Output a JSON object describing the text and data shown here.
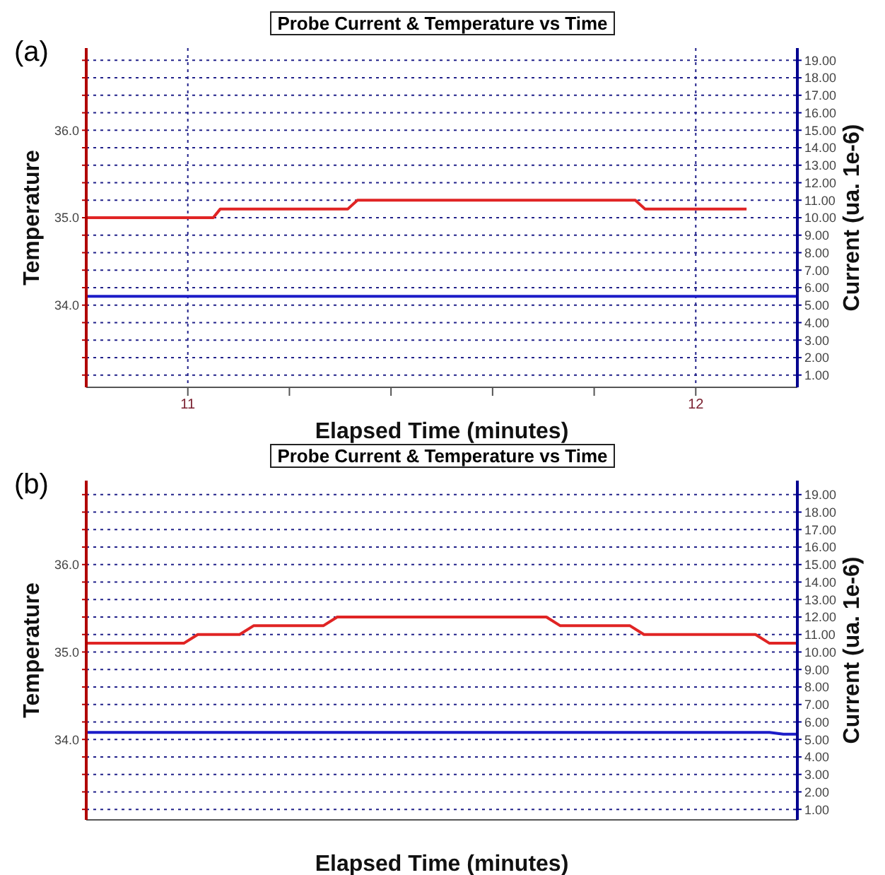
{
  "chart_data": [
    {
      "type": "line",
      "title": "Probe Current & Temperature vs Time",
      "xlabel": "Elapsed Time (minutes)",
      "ylabel": "Temperature",
      "y2label": "Current (ua. 1e-6)",
      "annotations": [
        "(a)"
      ],
      "xlim": [
        10.8,
        12.2
      ],
      "xticks": [
        {
          "value": 11,
          "label": "11"
        },
        {
          "value": 11.2,
          "label": null
        },
        {
          "value": 11.4,
          "label": null
        },
        {
          "value": 11.6,
          "label": null
        },
        {
          "value": 11.8,
          "label": null
        },
        {
          "value": 12,
          "label": "12"
        }
      ],
      "ylim": [
        33.06,
        36.94
      ],
      "yticks": [
        {
          "value": 33.2,
          "label": null
        },
        {
          "value": 33.4,
          "label": null
        },
        {
          "value": 33.6,
          "label": null
        },
        {
          "value": 33.8,
          "label": null
        },
        {
          "value": 34,
          "label": "34.0"
        },
        {
          "value": 34.2,
          "label": null
        },
        {
          "value": 34.4,
          "label": null
        },
        {
          "value": 34.6,
          "label": null
        },
        {
          "value": 34.8,
          "label": null
        },
        {
          "value": 35,
          "label": "35.0"
        },
        {
          "value": 35.2,
          "label": null
        },
        {
          "value": 35.4,
          "label": null
        },
        {
          "value": 35.6,
          "label": null
        },
        {
          "value": 35.8,
          "label": null
        },
        {
          "value": 36,
          "label": "36.0"
        },
        {
          "value": 36.2,
          "label": null
        },
        {
          "value": 36.4,
          "label": null
        },
        {
          "value": 36.6,
          "label": null
        },
        {
          "value": 36.8,
          "label": null
        }
      ],
      "y2lim": [
        0.3,
        19.7
      ],
      "y2ticks": [
        {
          "value": 1,
          "label": "1.00"
        },
        {
          "value": 2,
          "label": "2.00"
        },
        {
          "value": 3,
          "label": "3.00"
        },
        {
          "value": 4,
          "label": "4.00"
        },
        {
          "value": 5,
          "label": "5.00"
        },
        {
          "value": 6,
          "label": "6.00"
        },
        {
          "value": 7,
          "label": "7.00"
        },
        {
          "value": 8,
          "label": "8.00"
        },
        {
          "value": 9,
          "label": "9.00"
        },
        {
          "value": 10,
          "label": "10.00"
        },
        {
          "value": 11,
          "label": "11.00"
        },
        {
          "value": 12,
          "label": "12.00"
        },
        {
          "value": 13,
          "label": "13.00"
        },
        {
          "value": 14,
          "label": "14.00"
        },
        {
          "value": 15,
          "label": "15.00"
        },
        {
          "value": 16,
          "label": "16.00"
        },
        {
          "value": 17,
          "label": "17.00"
        },
        {
          "value": 18,
          "label": "18.00"
        },
        {
          "value": 19,
          "label": "19.00"
        }
      ],
      "grid": true,
      "series": [
        {
          "color": "#e02424",
          "x": [
            10.8,
            11.05,
            11.064,
            11.315,
            11.334,
            11.881,
            11.9,
            12.1
          ],
          "values": [
            35.0,
            35.0,
            35.1,
            35.1,
            35.2,
            35.2,
            35.1,
            35.1
          ]
        },
        {
          "color": "#1c1cc8",
          "axis": "y2",
          "x": [
            10.8,
            12.2
          ],
          "values": [
            5.5,
            5.5
          ]
        }
      ]
    },
    {
      "type": "line",
      "title": "Probe Current & Temperature vs Time",
      "xlabel": "Elapsed Time (minutes)",
      "ylabel": "Temperature",
      "y2label": "Current (ua. 1e-6)",
      "annotations": [
        "(b)"
      ],
      "categories": [
        null,
        null,
        null,
        null,
        null,
        null,
        null,
        null,
        null,
        null,
        null,
        null,
        null,
        null,
        null,
        null,
        null,
        null,
        null,
        null,
        null,
        null,
        null,
        null,
        null,
        null,
        null,
        null,
        null,
        null,
        null,
        null,
        null,
        null,
        null,
        null,
        null,
        null,
        null,
        null,
        null,
        null,
        null,
        null,
        null,
        null,
        null,
        null,
        null,
        null,
        null,
        null
      ],
      "ylim": [
        33.08,
        36.96
      ],
      "yticks": [
        {
          "value": 33.2,
          "label": null
        },
        {
          "value": 33.4,
          "label": null
        },
        {
          "value": 33.6,
          "label": null
        },
        {
          "value": 33.8,
          "label": null
        },
        {
          "value": 34,
          "label": "34.0"
        },
        {
          "value": 34.2,
          "label": null
        },
        {
          "value": 34.4,
          "label": null
        },
        {
          "value": 34.6,
          "label": null
        },
        {
          "value": 34.8,
          "label": null
        },
        {
          "value": 35,
          "label": "35.0"
        },
        {
          "value": 35.2,
          "label": null
        },
        {
          "value": 35.4,
          "label": null
        },
        {
          "value": 35.6,
          "label": null
        },
        {
          "value": 35.8,
          "label": null
        },
        {
          "value": 36,
          "label": "36.0"
        },
        {
          "value": 36.2,
          "label": null
        },
        {
          "value": 36.4,
          "label": null
        },
        {
          "value": 36.6,
          "label": null
        },
        {
          "value": 36.8,
          "label": null
        }
      ],
      "y2lim": [
        0.4,
        19.8
      ],
      "y2ticks": [
        {
          "value": 1,
          "label": "1.00"
        },
        {
          "value": 2,
          "label": "2.00"
        },
        {
          "value": 3,
          "label": "3.00"
        },
        {
          "value": 4,
          "label": "4.00"
        },
        {
          "value": 5,
          "label": "5.00"
        },
        {
          "value": 6,
          "label": "6.00"
        },
        {
          "value": 7,
          "label": "7.00"
        },
        {
          "value": 8,
          "label": "8.00"
        },
        {
          "value": 9,
          "label": "9.00"
        },
        {
          "value": 10,
          "label": "10.00"
        },
        {
          "value": 11,
          "label": "11.00"
        },
        {
          "value": 12,
          "label": "12.00"
        },
        {
          "value": 13,
          "label": "13.00"
        },
        {
          "value": 14,
          "label": "14.00"
        },
        {
          "value": 15,
          "label": "15.00"
        },
        {
          "value": 16,
          "label": "16.00"
        },
        {
          "value": 17,
          "label": "17.00"
        },
        {
          "value": 18,
          "label": "18.00"
        },
        {
          "value": 19,
          "label": "19.00"
        }
      ],
      "grid": "y",
      "series": [
        {
          "color": "#e02424",
          "values": [
            35.1,
            35.1,
            35.1,
            35.1,
            35.1,
            35.1,
            35.1,
            35.1,
            35.2,
            35.2,
            35.2,
            35.2,
            35.3,
            35.3,
            35.3,
            35.3,
            35.3,
            35.3,
            35.4,
            35.4,
            35.4,
            35.4,
            35.4,
            35.4,
            35.4,
            35.4,
            35.4,
            35.4,
            35.4,
            35.4,
            35.4,
            35.4,
            35.4,
            35.4,
            35.3,
            35.3,
            35.3,
            35.3,
            35.3,
            35.3,
            35.2,
            35.2,
            35.2,
            35.2,
            35.2,
            35.2,
            35.2,
            35.2,
            35.2,
            35.1,
            35.1,
            35.1
          ]
        },
        {
          "color": "#1c1cc8",
          "axis": "y2",
          "values": [
            5.4,
            5.4,
            5.4,
            5.4,
            5.4,
            5.4,
            5.4,
            5.4,
            5.4,
            5.4,
            5.4,
            5.4,
            5.4,
            5.4,
            5.4,
            5.4,
            5.4,
            5.4,
            5.4,
            5.4,
            5.4,
            5.4,
            5.4,
            5.4,
            5.4,
            5.4,
            5.4,
            5.4,
            5.4,
            5.4,
            5.4,
            5.4,
            5.4,
            5.4,
            5.4,
            5.4,
            5.4,
            5.4,
            5.4,
            5.4,
            5.4,
            5.4,
            5.4,
            5.4,
            5.4,
            5.4,
            5.4,
            5.4,
            5.4,
            5.4,
            5.3,
            5.3
          ]
        }
      ]
    }
  ]
}
